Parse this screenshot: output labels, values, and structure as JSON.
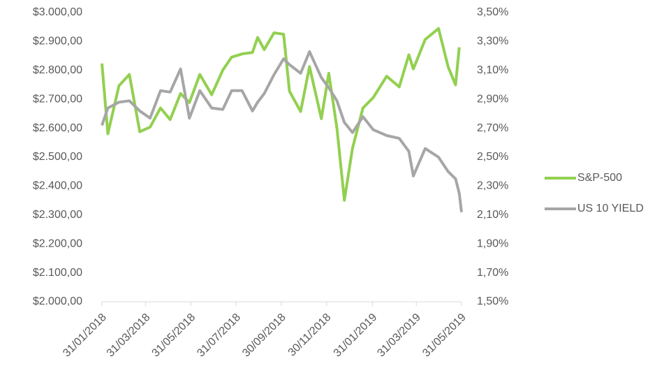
{
  "chart_data": {
    "type": "line",
    "x": [
      "31/01/2018",
      "08/02/2018",
      "23/02/2018",
      "09/03/2018",
      "23/03/2018",
      "06/04/2018",
      "20/04/2018",
      "03/05/2018",
      "17/05/2018",
      "29/05/2018",
      "12/06/2018",
      "28/06/2018",
      "13/07/2018",
      "25/07/2018",
      "08/08/2018",
      "22/08/2018",
      "29/08/2018",
      "07/09/2018",
      "20/09/2018",
      "03/10/2018",
      "11/10/2018",
      "26/10/2018",
      "07/11/2018",
      "23/11/2018",
      "03/12/2018",
      "14/12/2018",
      "24/12/2018",
      "04/01/2019",
      "18/01/2019",
      "01/02/2019",
      "19/02/2019",
      "08/03/2019",
      "21/03/2019",
      "27/03/2019",
      "12/04/2019",
      "30/04/2019",
      "13/05/2019",
      "23/05/2019",
      "28/05/2019",
      "31/05/2019"
    ],
    "series": [
      {
        "name": "S&P-500",
        "color": "#92d050",
        "axis": "y",
        "values": [
          2824,
          2581,
          2747,
          2786,
          2588,
          2604,
          2670,
          2630,
          2720,
          2689,
          2786,
          2716,
          2801,
          2846,
          2857,
          2862,
          2914,
          2872,
          2930,
          2925,
          2728,
          2658,
          2813,
          2633,
          2790,
          2600,
          2351,
          2531,
          2670,
          2706,
          2780,
          2743,
          2854,
          2805,
          2907,
          2945,
          2812,
          2750,
          2880,
          null
        ]
      },
      {
        "name": "US 10 YIELD",
        "color": "#a6a6a6",
        "axis": "y2",
        "values": [
          2.72,
          2.84,
          2.88,
          2.89,
          2.82,
          2.77,
          2.96,
          2.95,
          3.11,
          2.77,
          2.96,
          2.84,
          2.83,
          2.96,
          2.96,
          2.82,
          2.88,
          2.94,
          3.07,
          3.18,
          3.14,
          3.08,
          3.23,
          3.05,
          2.98,
          2.89,
          2.74,
          2.67,
          2.78,
          2.69,
          2.65,
          2.63,
          2.54,
          2.37,
          2.56,
          2.5,
          2.4,
          2.35,
          2.25,
          2.12
        ]
      }
    ],
    "xlim": [
      "31/01/2018",
      "31/05/2019"
    ],
    "xticks": [
      "31/01/2018",
      "31/03/2018",
      "31/05/2018",
      "31/07/2018",
      "30/09/2018",
      "30/11/2018",
      "31/01/2019",
      "31/03/2019",
      "31/05/2019"
    ],
    "ylim": [
      2000,
      3000
    ],
    "yticks": [
      {
        "value": 2000,
        "label": "$2.000,00"
      },
      {
        "value": 2100,
        "label": "$2.100,00"
      },
      {
        "value": 2200,
        "label": "$2.200,00"
      },
      {
        "value": 2300,
        "label": "$2.300,00"
      },
      {
        "value": 2400,
        "label": "$2.400,00"
      },
      {
        "value": 2500,
        "label": "$2.500,00"
      },
      {
        "value": 2600,
        "label": "$2.600,00"
      },
      {
        "value": 2700,
        "label": "$2.700,00"
      },
      {
        "value": 2800,
        "label": "$2.800,00"
      },
      {
        "value": 2900,
        "label": "$2.900,00"
      },
      {
        "value": 3000,
        "label": "$3.000,00"
      }
    ],
    "y2lim": [
      1.5,
      3.5
    ],
    "y2ticks": [
      {
        "value": 1.5,
        "label": "1,50%"
      },
      {
        "value": 1.7,
        "label": "1,70%"
      },
      {
        "value": 1.9,
        "label": "1,90%"
      },
      {
        "value": 2.1,
        "label": "2,10%"
      },
      {
        "value": 2.3,
        "label": "2,30%"
      },
      {
        "value": 2.5,
        "label": "2,50%"
      },
      {
        "value": 2.7,
        "label": "2,70%"
      },
      {
        "value": 2.9,
        "label": "2,90%"
      },
      {
        "value": 3.1,
        "label": "3,10%"
      },
      {
        "value": 3.3,
        "label": "3,30%"
      },
      {
        "value": 3.5,
        "label": "3,50%"
      }
    ],
    "legend": "right"
  }
}
